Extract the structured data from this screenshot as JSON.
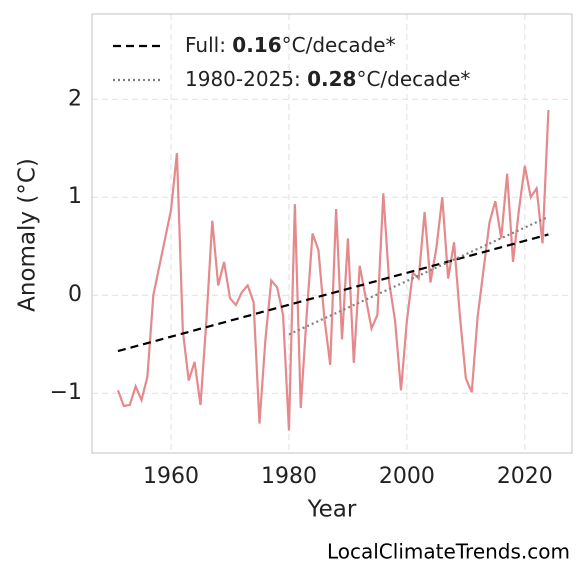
{
  "chart_data": {
    "type": "line",
    "xlabel": "Year",
    "ylabel": "Anomaly (°C)",
    "source": "LocalClimateTrends.com",
    "xlim": [
      1946.6,
      2028
    ],
    "ylim": [
      -1.61,
      2.87
    ],
    "xticks": [
      1960,
      1980,
      2000,
      2020
    ],
    "yticks": [
      {
        "value": -1,
        "label": "−1"
      },
      0,
      1,
      2
    ],
    "grid": true,
    "legend": "upper left",
    "series": [
      {
        "color": "#e48a8c",
        "style": "solid",
        "x": [
          1951,
          1952,
          1953,
          1954,
          1955,
          1956,
          1957,
          1958,
          1959,
          1960,
          1961,
          1962,
          1963,
          1964,
          1965,
          1966,
          1967,
          1968,
          1969,
          1970,
          1971,
          1972,
          1973,
          1974,
          1975,
          1976,
          1977,
          1978,
          1979,
          1980,
          1981,
          1982,
          1983,
          1984,
          1985,
          1986,
          1987,
          1988,
          1989,
          1990,
          1991,
          1992,
          1993,
          1994,
          1995,
          1996,
          1997,
          1998,
          1999,
          2000,
          2001,
          2002,
          2003,
          2004,
          2005,
          2006,
          2007,
          2008,
          2009,
          2010,
          2011,
          2012,
          2013,
          2014,
          2015,
          2016,
          2017,
          2018,
          2019,
          2020,
          2021,
          2022,
          2023,
          2024
        ],
        "values": [
          -0.97,
          -1.13,
          -1.12,
          -0.93,
          -1.07,
          -0.83,
          0.0,
          0.29,
          0.58,
          0.87,
          1.45,
          -0.36,
          -0.87,
          -0.68,
          -1.12,
          -0.26,
          0.76,
          0.1,
          0.34,
          -0.03,
          -0.1,
          0.03,
          0.1,
          -0.07,
          -1.31,
          -0.46,
          0.15,
          0.08,
          -0.2,
          -1.38,
          0.93,
          -1.15,
          -0.21,
          0.63,
          0.46,
          -0.23,
          -0.71,
          0.88,
          -0.45,
          0.58,
          -0.69,
          0.3,
          -0.02,
          -0.34,
          -0.2,
          1.04,
          0.13,
          -0.26,
          -0.97,
          -0.26,
          0.23,
          0.17,
          0.85,
          0.13,
          0.48,
          1.0,
          0.17,
          0.54,
          -0.22,
          -0.85,
          -0.99,
          -0.22,
          0.26,
          0.74,
          0.96,
          0.58,
          1.24,
          0.34,
          0.87,
          1.32,
          1.0,
          1.09,
          0.53,
          1.89
        ]
      },
      {
        "name": [
          "Full: ",
          "0.16",
          "°C/decade*"
        ],
        "color": "#000000",
        "style": "dashed",
        "x": [
          1951,
          2024
        ],
        "values": [
          -0.57,
          0.62
        ]
      },
      {
        "name": [
          "1980-2025: ",
          "0.28",
          "°C/decade*"
        ],
        "color": "#808080",
        "style": "dotted",
        "x": [
          1980,
          2024
        ],
        "values": [
          -0.4,
          0.8
        ]
      }
    ]
  }
}
